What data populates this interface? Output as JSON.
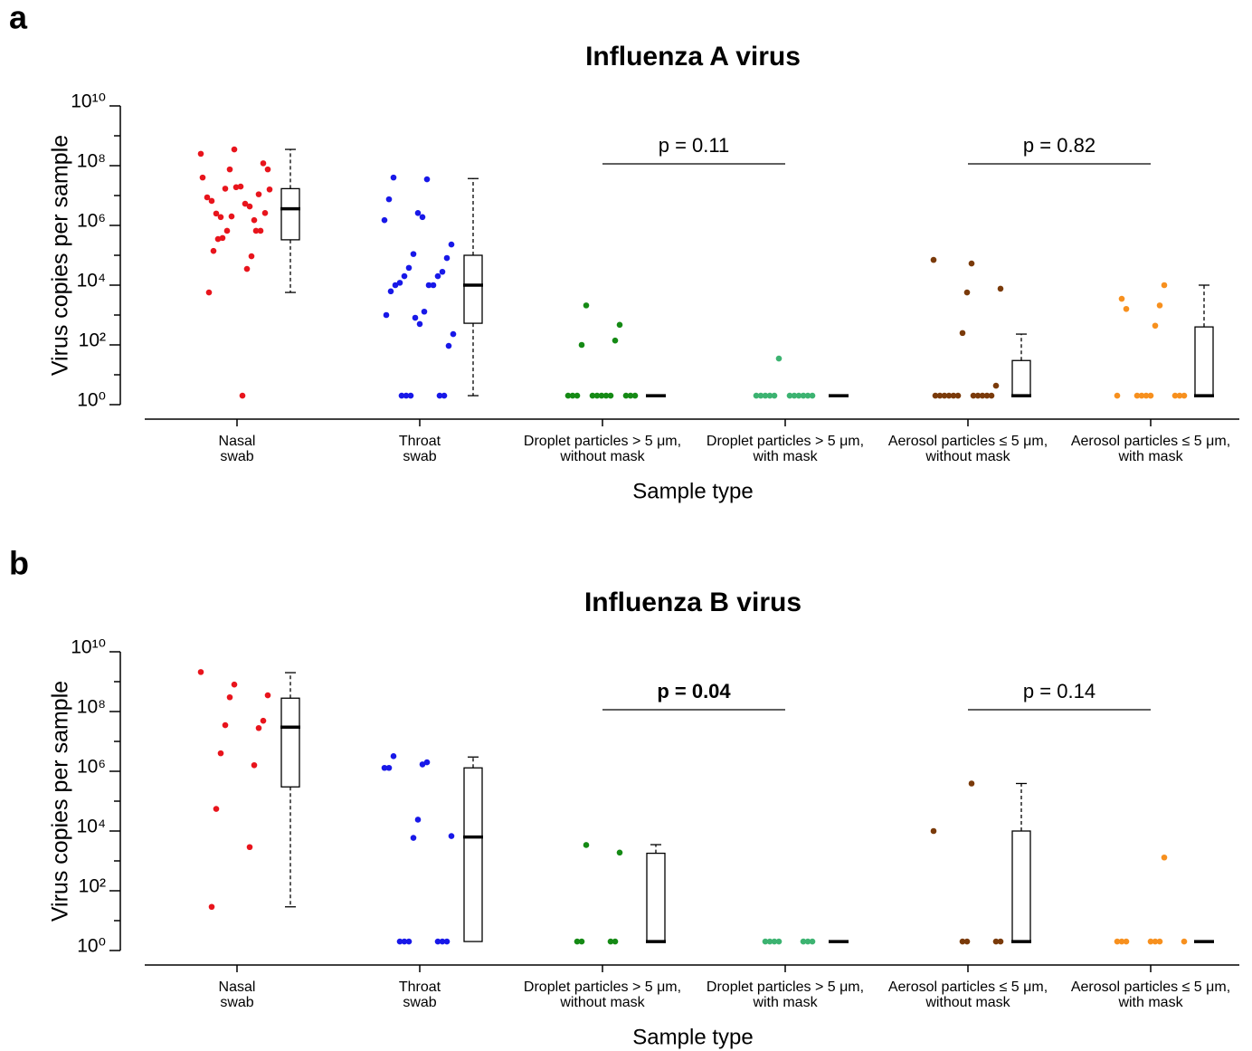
{
  "chart_data": [
    {
      "type": "strip_box",
      "panel_label": "a",
      "title": "Influenza A virus",
      "xlabel": "Sample type",
      "ylabel": "Virus copies per sample",
      "log_y": true,
      "ylim": [
        1,
        10000000000
      ],
      "yticks": [
        {
          "value": 1,
          "label": "10⁰"
        },
        {
          "value": 100,
          "label": "10²"
        },
        {
          "value": 10000,
          "label": "10⁴"
        },
        {
          "value": 1000000,
          "label": "10⁶"
        },
        {
          "value": 100000000,
          "label": "10⁸"
        },
        {
          "value": 10000000000,
          "label": "10¹⁰"
        }
      ],
      "minor_yticks": [
        10,
        1000,
        100000,
        10000000,
        1000000000
      ],
      "categories": [
        [
          "Nasal",
          "swab"
        ],
        [
          "Throat",
          "swab"
        ],
        [
          "Droplet particles > 5 μm,",
          "without mask"
        ],
        [
          "Droplet particles > 5 μm,",
          "with mask"
        ],
        [
          "Aerosol particles ≤ 5 μm,",
          "without mask"
        ],
        [
          "Aerosol particles ≤ 5 μm,",
          "with mask"
        ]
      ],
      "groups": [
        {
          "color": "#e8141c",
          "values": [
            250000000,
            350000000,
            75000000,
            75000000,
            120000000,
            17000000,
            11000000,
            1900000,
            1500000,
            2500000,
            4300000,
            6600000,
            5300000,
            8700000,
            20000000,
            40000000,
            19000000,
            16000000,
            2000000,
            2600000,
            660000,
            660000,
            380000,
            660000,
            350000,
            93000,
            140000,
            35000,
            5700,
            2
          ],
          "box": {
            "low": 5700,
            "q1": 330000,
            "median": 3600000,
            "q3": 17000000,
            "high": 350000000
          }
        },
        {
          "color": "#1818e8",
          "values": [
            40000000,
            35000000,
            7500000,
            1900000,
            1500000,
            2600000,
            230000,
            110000,
            81000,
            38000,
            28000,
            20000,
            20000,
            12000,
            10000,
            10000,
            10000,
            6200,
            1300,
            1000,
            500,
            230,
            810,
            93,
            2,
            2,
            2,
            2,
            2
          ],
          "box": {
            "low": 2,
            "q1": 530,
            "median": 10000,
            "q3": 100000,
            "high": 37000000
          }
        },
        {
          "color": "#158a15",
          "values": [
            2100,
            470,
            100,
            140,
            2,
            2,
            2,
            2,
            2,
            2,
            2,
            2,
            2,
            2,
            2
          ],
          "box": {
            "low": 2,
            "q1": 2,
            "median": 2,
            "q3": 2,
            "high": 2
          }
        },
        {
          "color": "#3cb371",
          "values": [
            35,
            2,
            2,
            2,
            2,
            2,
            2,
            2,
            2,
            2,
            2,
            2
          ],
          "box": {
            "low": 2,
            "q1": 2,
            "median": 2,
            "q3": 2,
            "high": 2
          }
        },
        {
          "color": "#7a3a0a",
          "values": [
            53000,
            70000,
            5700,
            7600,
            250,
            4.3,
            2,
            2,
            2,
            2,
            2,
            2,
            2,
            2,
            2,
            2,
            2
          ],
          "box": {
            "low": 2,
            "q1": 2,
            "median": 2,
            "q3": 30,
            "high": 230
          }
        },
        {
          "color": "#f7901e",
          "values": [
            10000,
            1600,
            2100,
            3500,
            440,
            2,
            2,
            2,
            2,
            2,
            2,
            2,
            2
          ],
          "box": {
            "low": 2,
            "q1": 2,
            "median": 2,
            "q3": 400,
            "high": 10000
          }
        }
      ],
      "annotations": [
        {
          "text": "p = 0.11",
          "from": 2,
          "to": 3,
          "bold": false
        },
        {
          "text": "p = 0.82",
          "from": 4,
          "to": 5,
          "bold": false
        }
      ]
    },
    {
      "type": "strip_box",
      "panel_label": "b",
      "title": "Influenza B virus",
      "xlabel": "Sample type",
      "ylabel": "Virus copies per sample",
      "log_y": true,
      "ylim": [
        1,
        10000000000
      ],
      "yticks": [
        {
          "value": 1,
          "label": "10⁰"
        },
        {
          "value": 100,
          "label": "10²"
        },
        {
          "value": 10000,
          "label": "10⁴"
        },
        {
          "value": 1000000,
          "label": "10⁶"
        },
        {
          "value": 100000000,
          "label": "10⁸"
        },
        {
          "value": 10000000000,
          "label": "10¹⁰"
        }
      ],
      "minor_yticks": [
        10,
        1000,
        100000,
        10000000,
        1000000000
      ],
      "categories": [
        [
          "Nasal",
          "swab"
        ],
        [
          "Throat",
          "swab"
        ],
        [
          "Droplet particles > 5 μm,",
          "without mask"
        ],
        [
          "Droplet particles > 5 μm,",
          "with mask"
        ],
        [
          "Aerosol particles ≤ 5 μm,",
          "without mask"
        ],
        [
          "Aerosol particles ≤ 5 μm,",
          "with mask"
        ]
      ],
      "groups": [
        {
          "color": "#e8141c",
          "values": [
            2100000000,
            800000000,
            350000000,
            300000000,
            49000000,
            35000000,
            28000000,
            4000000,
            1600000,
            55000,
            2900,
            29
          ],
          "box": {
            "low": 29,
            "q1": 300000,
            "median": 30000000,
            "q3": 280000000,
            "high": 2000000000
          }
        },
        {
          "color": "#1818e8",
          "values": [
            3200000,
            2000000,
            1300000,
            1700000,
            1300000,
            24000,
            6800,
            5900,
            2,
            2,
            2,
            2,
            2,
            2
          ],
          "box": {
            "low": 2,
            "q1": 2,
            "median": 6300,
            "q3": 1300000,
            "high": 3000000
          }
        },
        {
          "color": "#158a15",
          "values": [
            3400,
            1900,
            2,
            2,
            2,
            2
          ],
          "box": {
            "low": 2,
            "q1": 2,
            "median": 2,
            "q3": 1800,
            "high": 3500
          }
        },
        {
          "color": "#3cb371",
          "values": [
            2,
            2,
            2,
            2,
            2,
            2,
            2
          ],
          "box": {
            "low": 2,
            "q1": 2,
            "median": 2,
            "q3": 2,
            "high": 2
          }
        },
        {
          "color": "#7a3a0a",
          "values": [
            390000,
            10000,
            2,
            2,
            2,
            2
          ],
          "box": {
            "low": 2,
            "q1": 2,
            "median": 2,
            "q3": 10000,
            "high": 390000
          }
        },
        {
          "color": "#f7901e",
          "values": [
            1300,
            2,
            2,
            2,
            2,
            2,
            2,
            2
          ],
          "box": {
            "low": 2,
            "q1": 2,
            "median": 2,
            "q3": 2,
            "high": 2
          }
        }
      ],
      "annotations": [
        {
          "text": "p = 0.04",
          "from": 2,
          "to": 3,
          "bold": true
        },
        {
          "text": "p = 0.14",
          "from": 4,
          "to": 5,
          "bold": false
        }
      ]
    }
  ]
}
